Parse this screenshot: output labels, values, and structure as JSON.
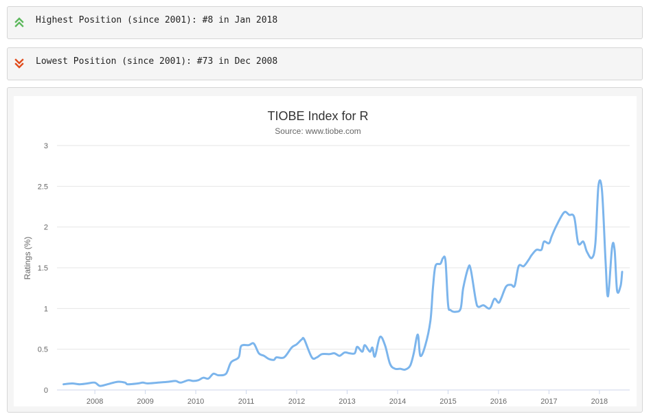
{
  "stats": {
    "highest": {
      "text": "Highest Position (since 2001): #8 in Jan 2018",
      "icon": "double-chevron-up-icon",
      "color": "#5cb85c"
    },
    "lowest": {
      "text": "Lowest Position (since 2001): #73 in Dec 2008",
      "icon": "double-chevron-down-icon",
      "color": "#e04c1c"
    }
  },
  "chart_data": {
    "type": "line",
    "title": "TIOBE Index for R",
    "subtitle": "Source: www.tiobe.com",
    "ylabel": "Ratings (%)",
    "xlabel": "",
    "ylim": [
      0,
      3
    ],
    "xlim": [
      2007.25,
      2018.6
    ],
    "yticks": [
      0,
      0.5,
      1,
      1.5,
      2,
      2.5,
      3
    ],
    "xticks": [
      2008,
      2009,
      2010,
      2011,
      2012,
      2013,
      2014,
      2015,
      2016,
      2017,
      2018
    ],
    "grid": true,
    "legend": "none",
    "line_color": "#7cb5ec",
    "series": [
      {
        "points": [
          [
            2007.38,
            0.07
          ],
          [
            2007.55,
            0.08
          ],
          [
            2007.7,
            0.07
          ],
          [
            2007.85,
            0.08
          ],
          [
            2008.0,
            0.09
          ],
          [
            2008.1,
            0.05
          ],
          [
            2008.25,
            0.07
          ],
          [
            2008.45,
            0.1
          ],
          [
            2008.6,
            0.09
          ],
          [
            2008.65,
            0.07
          ],
          [
            2008.85,
            0.08
          ],
          [
            2008.95,
            0.09
          ],
          [
            2009.05,
            0.08
          ],
          [
            2009.25,
            0.09
          ],
          [
            2009.45,
            0.1
          ],
          [
            2009.6,
            0.11
          ],
          [
            2009.7,
            0.09
          ],
          [
            2009.85,
            0.12
          ],
          [
            2009.95,
            0.11
          ],
          [
            2010.05,
            0.12
          ],
          [
            2010.15,
            0.15
          ],
          [
            2010.25,
            0.14
          ],
          [
            2010.35,
            0.2
          ],
          [
            2010.45,
            0.18
          ],
          [
            2010.6,
            0.2
          ],
          [
            2010.7,
            0.34
          ],
          [
            2010.85,
            0.4
          ],
          [
            2010.9,
            0.54
          ],
          [
            2011.05,
            0.55
          ],
          [
            2011.15,
            0.57
          ],
          [
            2011.25,
            0.45
          ],
          [
            2011.35,
            0.42
          ],
          [
            2011.45,
            0.38
          ],
          [
            2011.55,
            0.37
          ],
          [
            2011.6,
            0.4
          ],
          [
            2011.75,
            0.4
          ],
          [
            2011.9,
            0.52
          ],
          [
            2012.0,
            0.56
          ],
          [
            2012.1,
            0.62
          ],
          [
            2012.15,
            0.62
          ],
          [
            2012.3,
            0.4
          ],
          [
            2012.4,
            0.4
          ],
          [
            2012.5,
            0.44
          ],
          [
            2012.65,
            0.44
          ],
          [
            2012.75,
            0.45
          ],
          [
            2012.85,
            0.42
          ],
          [
            2012.95,
            0.46
          ],
          [
            2013.05,
            0.45
          ],
          [
            2013.15,
            0.45
          ],
          [
            2013.2,
            0.53
          ],
          [
            2013.3,
            0.47
          ],
          [
            2013.35,
            0.55
          ],
          [
            2013.45,
            0.47
          ],
          [
            2013.5,
            0.52
          ],
          [
            2013.55,
            0.41
          ],
          [
            2013.65,
            0.65
          ],
          [
            2013.75,
            0.55
          ],
          [
            2013.85,
            0.32
          ],
          [
            2013.95,
            0.26
          ],
          [
            2014.05,
            0.26
          ],
          [
            2014.15,
            0.25
          ],
          [
            2014.25,
            0.3
          ],
          [
            2014.32,
            0.45
          ],
          [
            2014.4,
            0.68
          ],
          [
            2014.45,
            0.42
          ],
          [
            2014.55,
            0.55
          ],
          [
            2014.65,
            0.85
          ],
          [
            2014.7,
            1.25
          ],
          [
            2014.75,
            1.52
          ],
          [
            2014.85,
            1.55
          ],
          [
            2014.9,
            1.62
          ],
          [
            2014.95,
            1.58
          ],
          [
            2015.0,
            1.05
          ],
          [
            2015.05,
            0.98
          ],
          [
            2015.15,
            0.96
          ],
          [
            2015.25,
            1.0
          ],
          [
            2015.3,
            1.25
          ],
          [
            2015.4,
            1.5
          ],
          [
            2015.45,
            1.48
          ],
          [
            2015.55,
            1.1
          ],
          [
            2015.6,
            1.02
          ],
          [
            2015.7,
            1.04
          ],
          [
            2015.8,
            1.0
          ],
          [
            2015.85,
            1.02
          ],
          [
            2015.92,
            1.12
          ],
          [
            2016.0,
            1.07
          ],
          [
            2016.05,
            1.12
          ],
          [
            2016.15,
            1.27
          ],
          [
            2016.25,
            1.29
          ],
          [
            2016.32,
            1.28
          ],
          [
            2016.4,
            1.52
          ],
          [
            2016.5,
            1.52
          ],
          [
            2016.6,
            1.6
          ],
          [
            2016.65,
            1.65
          ],
          [
            2016.75,
            1.72
          ],
          [
            2016.85,
            1.72
          ],
          [
            2016.9,
            1.82
          ],
          [
            2017.0,
            1.8
          ],
          [
            2017.05,
            1.88
          ],
          [
            2017.15,
            2.02
          ],
          [
            2017.3,
            2.18
          ],
          [
            2017.4,
            2.15
          ],
          [
            2017.5,
            2.12
          ],
          [
            2017.58,
            1.8
          ],
          [
            2017.68,
            1.82
          ],
          [
            2017.75,
            1.7
          ],
          [
            2017.85,
            1.62
          ],
          [
            2017.92,
            1.8
          ],
          [
            2017.98,
            2.5
          ],
          [
            2018.05,
            2.45
          ],
          [
            2018.12,
            1.6
          ],
          [
            2018.17,
            1.15
          ],
          [
            2018.25,
            1.75
          ],
          [
            2018.3,
            1.72
          ],
          [
            2018.35,
            1.22
          ],
          [
            2018.42,
            1.28
          ],
          [
            2018.45,
            1.45
          ]
        ]
      }
    ]
  }
}
